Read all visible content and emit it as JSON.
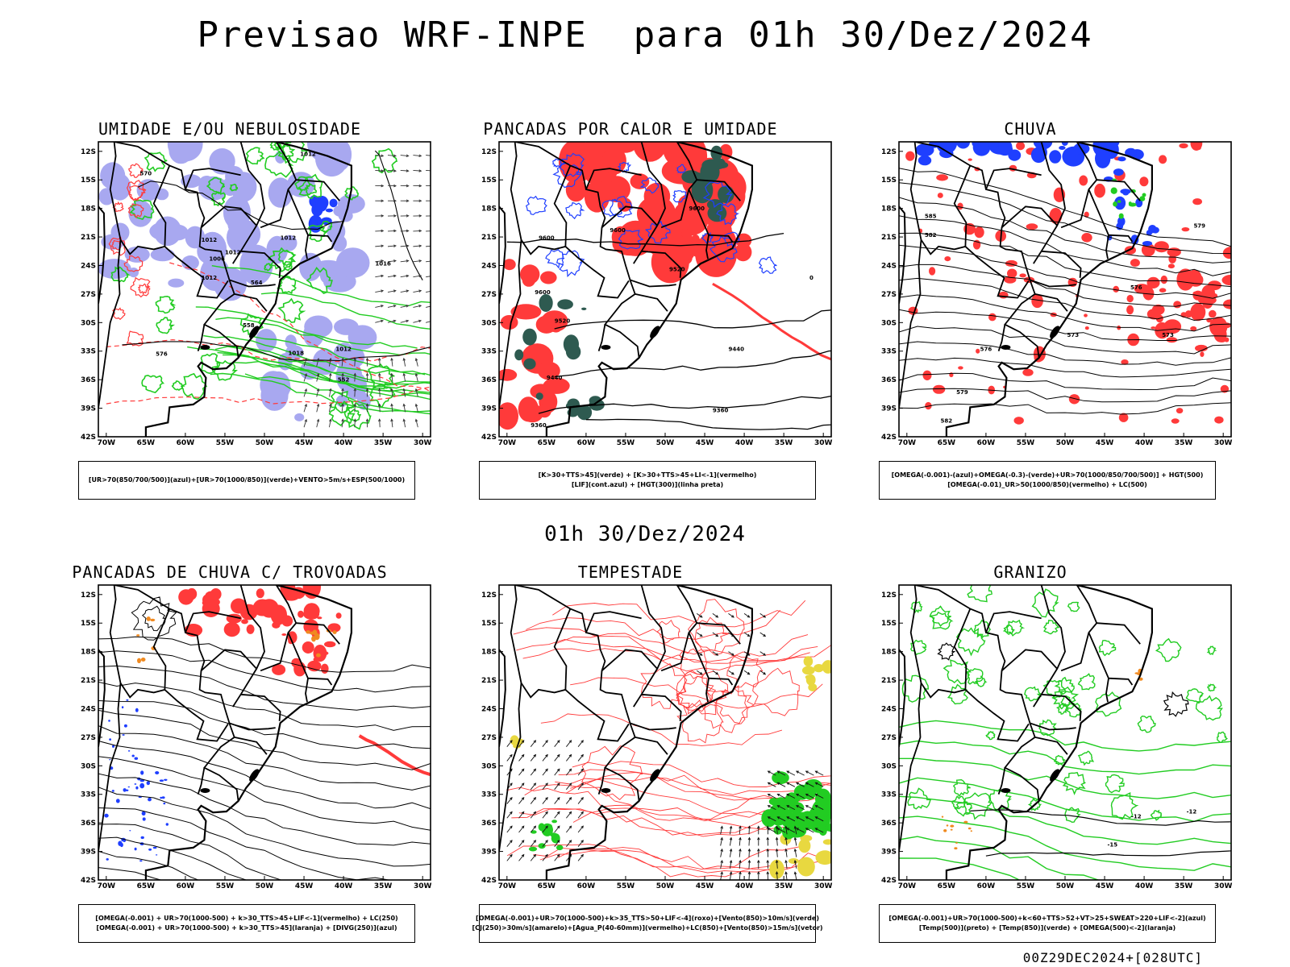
{
  "header": {
    "title": "Previsao WRF-INPE  para 01h 30/Dez/2024",
    "mid_title": "01h 30/Dez/2024",
    "footer": "00Z29DEC2024+[028UTC]"
  },
  "axes": {
    "lat_ticks": [
      "12S",
      "15S",
      "18S",
      "21S",
      "24S",
      "27S",
      "30S",
      "33S",
      "36S",
      "39S",
      "42S"
    ],
    "lon_ticks": [
      "70W",
      "65W",
      "60W",
      "55W",
      "50W",
      "45W",
      "40W",
      "35W",
      "30W"
    ],
    "lat_range": [
      -42,
      -11
    ],
    "lon_range": [
      -71,
      -29
    ]
  },
  "colors": {
    "red": "#ff3a3a",
    "blue": "#1f3fff",
    "green": "#22cc22",
    "lavender": "#a8a8f0",
    "darkgreen": "#2e5a50",
    "orange": "#f08a20",
    "yellow": "#e8d840",
    "purple": "#9a40c0"
  },
  "panels": [
    {
      "title": "UMIDADE E/OU NEBULOSIDADE",
      "legend": [
        "[UR>70(850/700/500)](azul)+[UR>70(1000/850)](verde)+VENTO>5m/s+ESP(500/1000)"
      ],
      "contour_labels": [
        "1012",
        "1012",
        "1012",
        "1006",
        "1012",
        "1012",
        "1016",
        "1018",
        "1012",
        "576",
        "570",
        "564",
        "558",
        "552"
      ]
    },
    {
      "title": "PANCADAS POR CALOR E UMIDADE",
      "legend": [
        "[K>30+TTS>45](verde) + [K>30+TTS>45+LI<-1](vermelho)",
        "[LIF](cont.azul) + [HGT(300)](linha preta)"
      ],
      "contour_labels": [
        "9600",
        "9600",
        "9600",
        "9600",
        "9520",
        "9520",
        "9440",
        "9440",
        "9360",
        "9360",
        "0"
      ]
    },
    {
      "title": "CHUVA",
      "legend": [
        "[OMEGA(-0.001)-(azul)+OMEGA(-0.3)-(verde)+UR>70(1000/850/700/500)] + HGT(500)",
        "[OMEGA(-0.01)_UR>50(1000/850)(vermelho) + LC(500)"
      ],
      "contour_labels": [
        "585",
        "582",
        "579",
        "576",
        "573",
        "576",
        "579",
        "582",
        "573"
      ]
    },
    {
      "title": "PANCADAS DE CHUVA C/ TROVOADAS",
      "legend": [
        "[OMEGA(-0.001) + UR>70(1000-500) + k>30_TTS>45+LIF<-1](vermelho) + LC(250)",
        "[OMEGA(-0.001) + UR>70(1000-500) + k>30_TTS>45](laranja) + [DIVG(250)](azul)"
      ],
      "contour_labels": []
    },
    {
      "title": "TEMPESTADE",
      "legend": [
        "[OMEGA(-0.001)+UR>70(1000-500)+k>35_TTS>50+LIF<-4](roxo)+[Vento(850)>10m/s](verde)",
        "[CJ(250)>30m/s](amarelo)+[Agua_P(40-60mm)](vermelho)+LC(850)+[Vento(850)>15m/s](vetor)"
      ],
      "contour_labels": []
    },
    {
      "title": "GRANIZO",
      "legend": [
        "[OMEGA(-0.001)+UR>70(1000-500)+k<60+TTS>52+VT>25+SWEAT>220+LIF<-2](azul)",
        "[Temp(500)](preto) + [Temp(850)](verde) + [OMEGA(500)<-2](laranja)"
      ],
      "contour_labels": [
        "-12",
        "-15",
        "-12"
      ]
    }
  ]
}
